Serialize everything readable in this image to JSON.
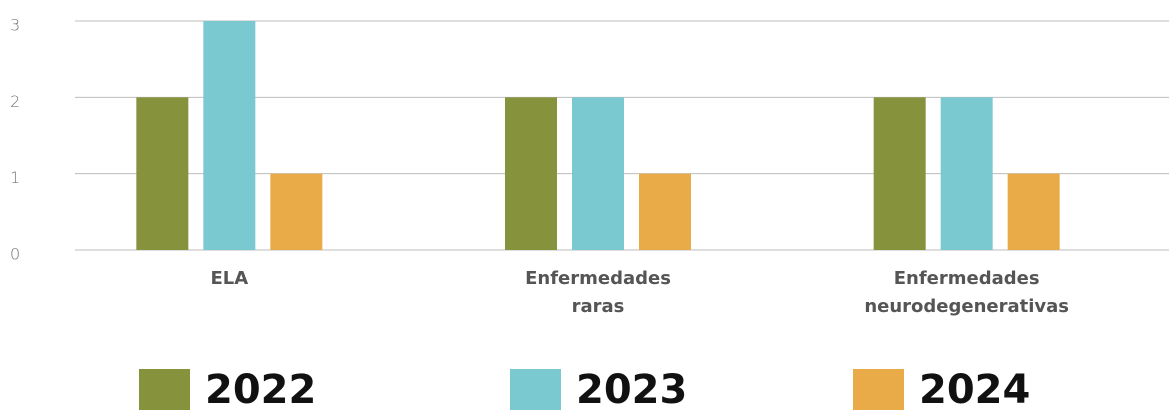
{
  "chart_data": {
    "type": "bar",
    "categories": [
      "ELA",
      "Enfermedades raras",
      "Enfermedades neurodegenerativas"
    ],
    "series": [
      {
        "name": "2022",
        "color": "#86923c",
        "values": [
          2,
          2,
          2
        ]
      },
      {
        "name": "2023",
        "color": "#7ac9d1",
        "values": [
          3,
          2,
          2
        ]
      },
      {
        "name": "2024",
        "color": "#e8ab48",
        "values": [
          1,
          1,
          1
        ]
      }
    ],
    "ylim": [
      0,
      3
    ],
    "yticks": [
      0,
      1,
      2,
      3
    ],
    "grid": true
  }
}
